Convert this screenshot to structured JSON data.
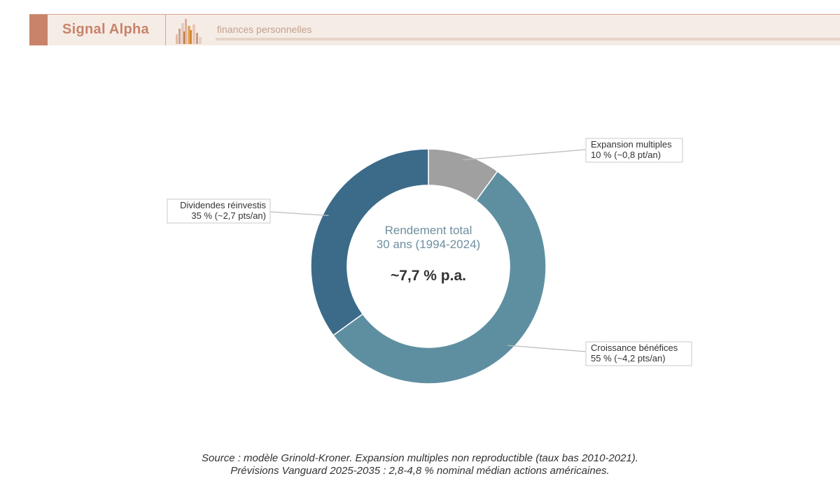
{
  "header": {
    "brand": "Signal Alpha",
    "tagline": "finances personnelles"
  },
  "chart_data": {
    "type": "pie",
    "center_title_line1": "Rendement total",
    "center_title_line2": "30 ans (1994-2024)",
    "center_value": "~7,7 % p.a.",
    "slices": [
      {
        "name": "Expansion multiples",
        "value": 10,
        "detail": "10 % (~0,8 pt/an)",
        "color": "#a0a0a0"
      },
      {
        "name": "Croissance bénéfices",
        "value": 55,
        "detail": "55 % (~4,2 pts/an)",
        "color": "#5e8fa1"
      },
      {
        "name": "Dividendes réinvestis",
        "value": 35,
        "detail": "35 % (~2,7 pts/an)",
        "color": "#3b6b89"
      }
    ]
  },
  "footer": {
    "line1": "Source : modèle Grinold-Kroner. Expansion multiples non reproductible (taux bas 2010-2021).",
    "line2": "Prévisions Vanguard 2025-2035 : 2,8-4,8 % nominal médian actions américaines."
  }
}
